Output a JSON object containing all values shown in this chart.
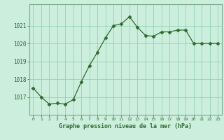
{
  "x": [
    0,
    1,
    2,
    3,
    4,
    5,
    6,
    7,
    8,
    9,
    10,
    11,
    12,
    13,
    14,
    15,
    16,
    17,
    18,
    19,
    20,
    21,
    22,
    23
  ],
  "y": [
    1017.5,
    1017.0,
    1016.6,
    1016.65,
    1016.6,
    1016.85,
    1017.85,
    1018.75,
    1019.5,
    1020.3,
    1021.0,
    1021.1,
    1021.5,
    1020.9,
    1020.45,
    1020.4,
    1020.65,
    1020.65,
    1020.75,
    1020.75,
    1020.0,
    1020.0,
    1020.0,
    1020.0
  ],
  "line_color": "#2d6a2d",
  "marker": "D",
  "marker_size": 2.5,
  "background_color": "#cceedd",
  "plot_bg_color": "#cceedd",
  "grid_color": "#88ccaa",
  "border_color": "#7aaa8a",
  "xlabel": "Graphe pression niveau de la mer (hPa)",
  "xlabel_color": "#2d6a2d",
  "tick_color": "#2d6a2d",
  "ylim": [
    1016.0,
    1022.2
  ],
  "yticks": [
    1017,
    1018,
    1019,
    1020,
    1021
  ],
  "xlim": [
    -0.5,
    23.5
  ],
  "xticks": [
    0,
    1,
    2,
    3,
    4,
    5,
    6,
    7,
    8,
    9,
    10,
    11,
    12,
    13,
    14,
    15,
    16,
    17,
    18,
    19,
    20,
    21,
    22,
    23
  ],
  "xtick_labels": [
    "0",
    "1",
    "2",
    "3",
    "4",
    "5",
    "6",
    "7",
    "8",
    "9",
    "10",
    "11",
    "12",
    "13",
    "14",
    "15",
    "16",
    "17",
    "18",
    "19",
    "20",
    "21",
    "22",
    "23"
  ]
}
